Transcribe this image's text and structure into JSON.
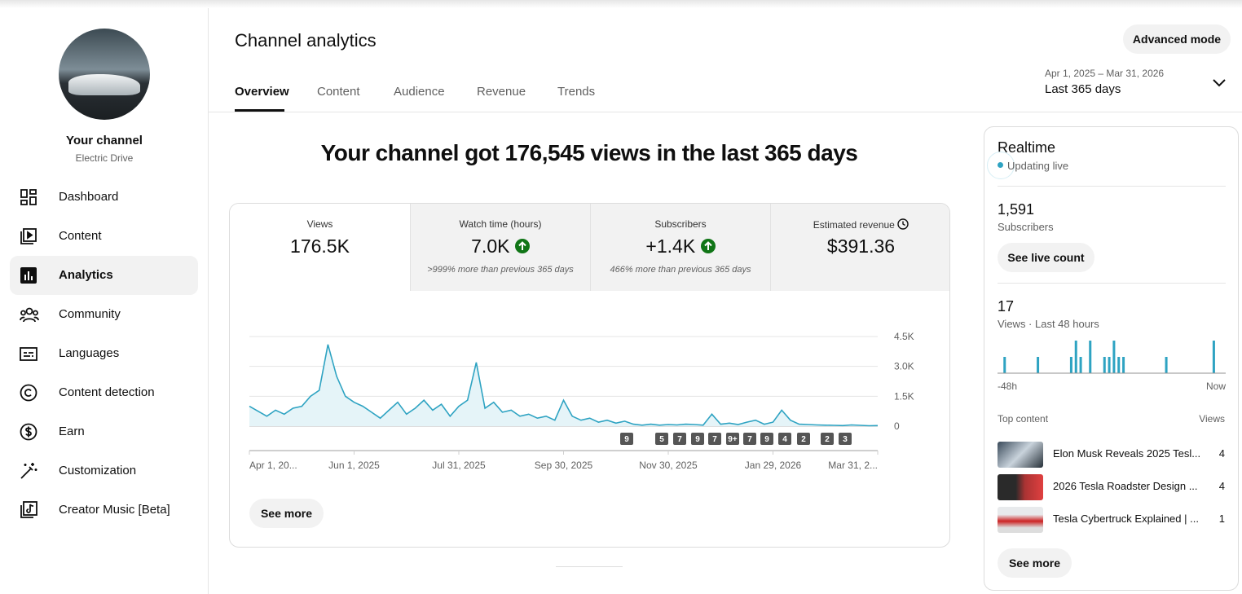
{
  "sidebar": {
    "channel_name": "Your channel",
    "channel_handle": "Electric Drive",
    "nav": [
      "Dashboard",
      "Content",
      "Analytics",
      "Community",
      "Languages",
      "Content detection",
      "Earn",
      "Customization",
      "Creator Music [Beta]"
    ]
  },
  "header": {
    "title": "Channel analytics",
    "advanced_mode": "Advanced mode",
    "tabs": [
      "Overview",
      "Content",
      "Audience",
      "Revenue",
      "Trends"
    ],
    "date_range": "Apr 1, 2025 – Mar 31, 2026",
    "period": "Last 365 days"
  },
  "headline": "Your channel got 176,545 views in the last 365 days",
  "metrics": [
    {
      "label": "Views",
      "value": "176.5K"
    },
    {
      "label": "Watch time (hours)",
      "value": "7.0K",
      "note": ">999% more than previous 365 days"
    },
    {
      "label": "Subscribers",
      "value": "+1.4K",
      "note": "466% more than previous 365 days"
    },
    {
      "label": "Estimated revenue",
      "value": "$391.36"
    }
  ],
  "see_more": "See more",
  "chart_data": [
    {
      "type": "line",
      "color": "#2ea3c2",
      "categories": [
        "Apr 1, 20...",
        null,
        null,
        null,
        null,
        null,
        null,
        null,
        null,
        null,
        null,
        null,
        "Jun 1, 2025",
        null,
        null,
        null,
        null,
        null,
        null,
        null,
        null,
        null,
        null,
        null,
        "Jul 31, 2025",
        null,
        null,
        null,
        null,
        null,
        null,
        null,
        null,
        null,
        null,
        null,
        "Sep 30, 2025",
        null,
        null,
        null,
        null,
        null,
        null,
        null,
        null,
        null,
        null,
        null,
        "Nov 30, 2025",
        null,
        null,
        null,
        null,
        null,
        null,
        null,
        null,
        null,
        null,
        null,
        "Jan 29, 2026",
        null,
        null,
        null,
        null,
        null,
        null,
        null,
        null,
        null,
        null,
        null,
        "Mar 31, 2..."
      ],
      "values": [
        1000,
        750,
        500,
        800,
        600,
        900,
        1000,
        1500,
        1800,
        4100,
        2500,
        1500,
        1200,
        1000,
        700,
        400,
        800,
        1200,
        600,
        900,
        1300,
        800,
        1100,
        500,
        1000,
        1300,
        3200,
        900,
        1200,
        700,
        800,
        500,
        600,
        400,
        500,
        300,
        1300,
        500,
        300,
        400,
        200,
        300,
        150,
        250,
        100,
        50,
        100,
        50,
        80,
        60,
        100,
        80,
        50,
        600,
        100,
        150,
        80,
        200,
        300,
        100,
        200,
        800,
        300,
        100,
        80,
        60,
        50,
        40,
        30,
        60,
        40,
        20,
        30
      ],
      "ylim": [
        0,
        4500
      ],
      "yticks": [
        0,
        {
          "value": 1500,
          "label": "1.5K"
        },
        {
          "value": 3000,
          "label": "3.0K"
        },
        {
          "value": 4500,
          "label": "4.5K"
        }
      ],
      "grid": true,
      "annotations": [
        "9",
        "5",
        "7",
        "9",
        "7",
        "9+",
        "7",
        "9",
        "4",
        "2",
        "2",
        "3"
      ]
    },
    {
      "type": "bar",
      "color": "#2ea3c2",
      "categories": [
        "-48h",
        null,
        null,
        null,
        null,
        null,
        null,
        null,
        null,
        null,
        null,
        null,
        null,
        null,
        null,
        null,
        null,
        null,
        null,
        null,
        null,
        null,
        null,
        null,
        null,
        null,
        null,
        null,
        null,
        null,
        null,
        null,
        null,
        null,
        null,
        null,
        null,
        null,
        null,
        null,
        null,
        null,
        null,
        null,
        null,
        null,
        null,
        "Now"
      ],
      "values": [
        0,
        1,
        0,
        0,
        0,
        0,
        0,
        0,
        1,
        0,
        0,
        0,
        0,
        0,
        0,
        1,
        2,
        1,
        0,
        2,
        0,
        0,
        1,
        1,
        2,
        1,
        1,
        0,
        0,
        0,
        0,
        0,
        0,
        0,
        0,
        1,
        0,
        0,
        0,
        0,
        0,
        0,
        0,
        0,
        0,
        2,
        0,
        0
      ]
    }
  ],
  "realtime": {
    "title": "Realtime",
    "status": "Updating live",
    "subscribers": "1,591",
    "subscribers_label": "Subscribers",
    "live_count": "See live count",
    "views": "17",
    "views_label": "Views · Last 48 hours",
    "top_content": "Top content",
    "views_header": "Views",
    "items": [
      {
        "title": "Elon Musk Reveals 2025 Tesl...",
        "views": "4"
      },
      {
        "title": "2026 Tesla Roadster Design ...",
        "views": "4"
      },
      {
        "title": "Tesla Cybertruck Explained | ...",
        "views": "1"
      }
    ],
    "see_more": "See more"
  }
}
